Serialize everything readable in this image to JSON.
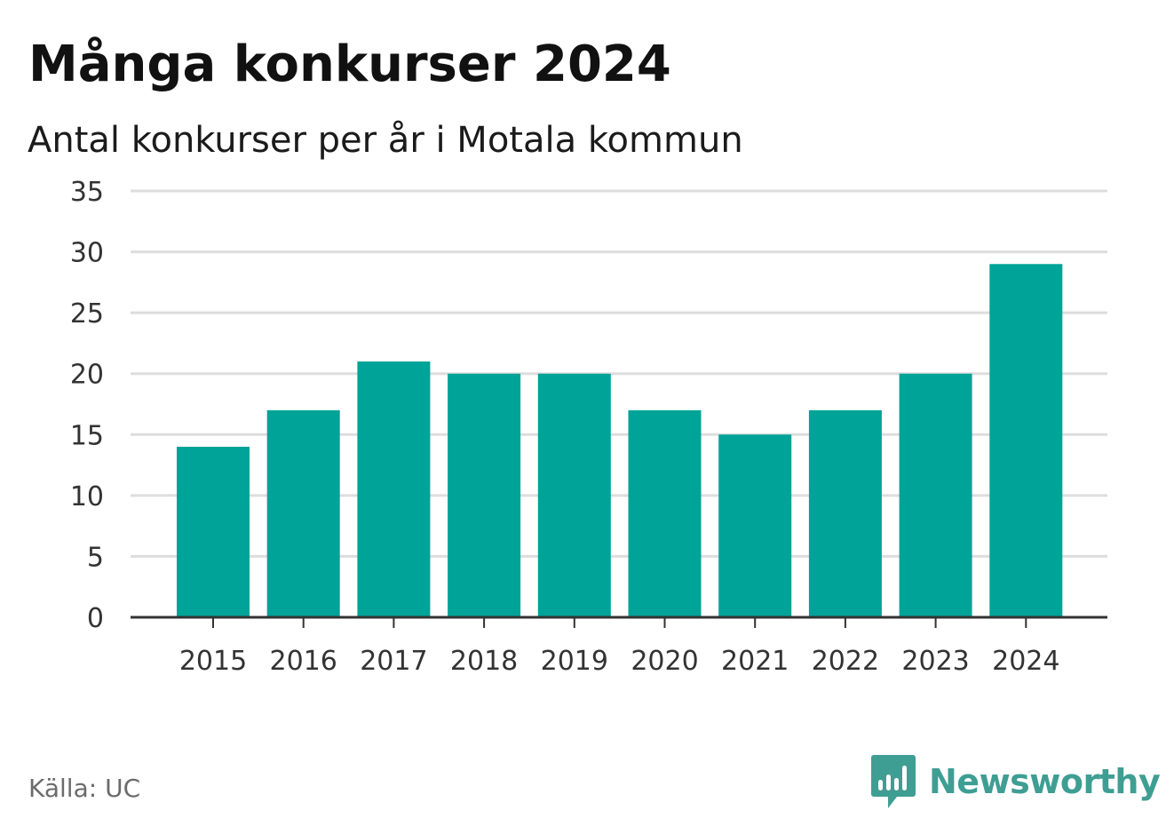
{
  "header": {
    "title": "Många konkurser 2024",
    "subtitle": "Antal konkurser per år i Motala kommun"
  },
  "footer": {
    "source": "Källa: UC",
    "brand": "Newsworthy",
    "brand_icon": "bar-chart-logo-icon",
    "brand_color": "#3f9e93"
  },
  "chart_data": {
    "type": "bar",
    "categories": [
      "2015",
      "2016",
      "2017",
      "2018",
      "2019",
      "2020",
      "2021",
      "2022",
      "2023",
      "2024"
    ],
    "values": [
      14,
      17,
      21,
      20,
      20,
      17,
      15,
      17,
      20,
      29
    ],
    "title": "Många konkurser 2024",
    "subtitle": "Antal konkurser per år i Motala kommun",
    "ylim": [
      0,
      35
    ],
    "yticks": [
      0,
      5,
      10,
      15,
      20,
      25,
      30,
      35
    ],
    "grid": true,
    "bar_color": "#00a398",
    "grid_color": "#dddddd",
    "axis_color": "#333333"
  }
}
